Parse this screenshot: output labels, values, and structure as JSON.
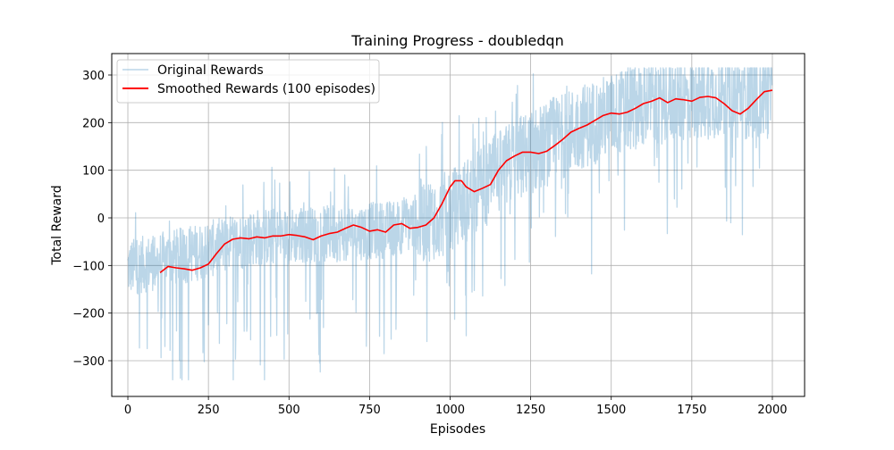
{
  "chart_data": {
    "type": "line",
    "title": "Training Progress - doubledqn",
    "xlabel": "Episodes",
    "ylabel": "Total Reward",
    "xlim": [
      -50,
      2100
    ],
    "ylim": [
      -375,
      345
    ],
    "x_ticks": [
      0,
      250,
      500,
      750,
      1000,
      1250,
      1500,
      1750,
      2000
    ],
    "y_ticks": [
      -300,
      -200,
      -100,
      0,
      100,
      200,
      300
    ],
    "grid": true,
    "legend_position": "top-left",
    "series": [
      {
        "name": "Original Rewards",
        "color": "#1f77b4",
        "alpha": 0.3,
        "episodes": 2000,
        "approx_mean_by_200_episodes": [
          -105,
          -75,
          -40,
          -35,
          -25,
          10,
          120,
          190,
          240,
          255
        ],
        "approx_min": -340,
        "approx_max": 315
      },
      {
        "name": "Smoothed Rewards (100 episodes)",
        "color": "#ff0000",
        "x": [
          100,
          125,
          150,
          175,
          200,
          225,
          250,
          275,
          300,
          325,
          350,
          375,
          400,
          425,
          450,
          475,
          500,
          525,
          550,
          575,
          600,
          625,
          650,
          675,
          700,
          725,
          750,
          775,
          800,
          825,
          850,
          875,
          900,
          925,
          950,
          975,
          1000,
          1015,
          1035,
          1050,
          1075,
          1100,
          1125,
          1150,
          1175,
          1200,
          1225,
          1250,
          1275,
          1300,
          1325,
          1350,
          1375,
          1400,
          1425,
          1450,
          1475,
          1500,
          1525,
          1550,
          1575,
          1600,
          1625,
          1650,
          1675,
          1700,
          1725,
          1750,
          1775,
          1800,
          1825,
          1850,
          1875,
          1900,
          1925,
          1950,
          1975,
          2000
        ],
        "y": [
          -115,
          -102,
          -105,
          -107,
          -110,
          -105,
          -97,
          -75,
          -55,
          -45,
          -42,
          -44,
          -40,
          -42,
          -38,
          -38,
          -35,
          -37,
          -40,
          -46,
          -38,
          -33,
          -30,
          -22,
          -15,
          -20,
          -28,
          -25,
          -30,
          -15,
          -12,
          -22,
          -20,
          -15,
          0,
          30,
          65,
          78,
          78,
          65,
          55,
          62,
          70,
          100,
          120,
          130,
          138,
          138,
          135,
          140,
          152,
          165,
          180,
          188,
          195,
          205,
          215,
          220,
          218,
          222,
          230,
          240,
          245,
          252,
          242,
          250,
          248,
          245,
          253,
          255,
          252,
          240,
          225,
          218,
          230,
          248,
          265,
          268
        ]
      }
    ]
  }
}
